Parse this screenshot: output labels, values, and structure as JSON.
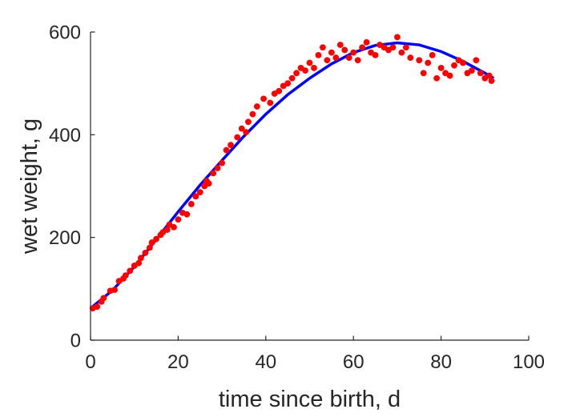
{
  "chart_data": {
    "type": "scatter",
    "xlabel": "time since birth, d",
    "ylabel": "wet weight, g",
    "xlim": [
      0,
      100
    ],
    "ylim": [
      0,
      600
    ],
    "xticks": [
      0,
      20,
      40,
      60,
      80,
      100
    ],
    "yticks": [
      0,
      200,
      400,
      600
    ],
    "xtick_labels": [
      "0",
      "20",
      "40",
      "60",
      "80",
      "100"
    ],
    "ytick_labels": [
      "0",
      "200",
      "400",
      "600"
    ],
    "grid": false,
    "series": [
      {
        "kind": "scatter",
        "color": "#ff0000",
        "x": [
          0.5,
          1.5,
          2.5,
          3,
          4.5,
          5.5,
          6.5,
          7.5,
          8,
          9,
          10,
          11,
          11.5,
          12.5,
          13.5,
          14,
          15,
          16,
          16.5,
          17.5,
          18,
          19,
          20,
          21,
          22,
          23,
          24,
          25,
          26,
          26.5,
          27,
          28,
          29,
          30,
          31,
          32,
          33.5,
          34.5,
          35.5,
          36,
          37,
          38,
          39.5,
          41,
          42,
          43,
          44,
          45,
          46,
          47,
          48,
          49,
          50,
          51,
          52,
          53,
          54,
          55,
          56,
          57,
          58,
          59,
          60,
          61,
          62,
          63,
          64,
          65,
          66,
          67,
          68,
          69,
          70,
          71,
          72,
          73,
          75,
          76,
          77,
          78,
          79,
          80,
          81,
          82,
          83,
          84,
          85,
          86,
          87,
          88,
          89,
          90,
          91,
          91.5
        ],
        "y": [
          62,
          65,
          75,
          82,
          96,
          98,
          115,
          120,
          126,
          135,
          145,
          150,
          160,
          170,
          180,
          190,
          197,
          205,
          210,
          215,
          225,
          220,
          235,
          248,
          245,
          265,
          280,
          288,
          300,
          310,
          305,
          325,
          335,
          345,
          370,
          380,
          395,
          412,
          405,
          425,
          440,
          455,
          470,
          462,
          480,
          485,
          495,
          500,
          510,
          520,
          530,
          525,
          540,
          530,
          555,
          570,
          545,
          560,
          550,
          575,
          565,
          550,
          560,
          545,
          570,
          580,
          560,
          555,
          575,
          570,
          565,
          570,
          590,
          560,
          570,
          550,
          545,
          520,
          540,
          555,
          510,
          530,
          520,
          515,
          535,
          545,
          540,
          520,
          525,
          545,
          520,
          510,
          515,
          505
        ]
      },
      {
        "kind": "line",
        "color": "#0000ff",
        "x": [
          0,
          5,
          10,
          15,
          20,
          25,
          30,
          35,
          40,
          45,
          50,
          55,
          60,
          65,
          70,
          75,
          80,
          85,
          90,
          92
        ],
        "y": [
          62,
          97,
          143,
          196,
          250,
          302,
          350,
          397,
          440,
          478,
          510,
          538,
          560,
          574,
          579,
          575,
          562,
          543,
          520,
          510
        ]
      }
    ]
  }
}
